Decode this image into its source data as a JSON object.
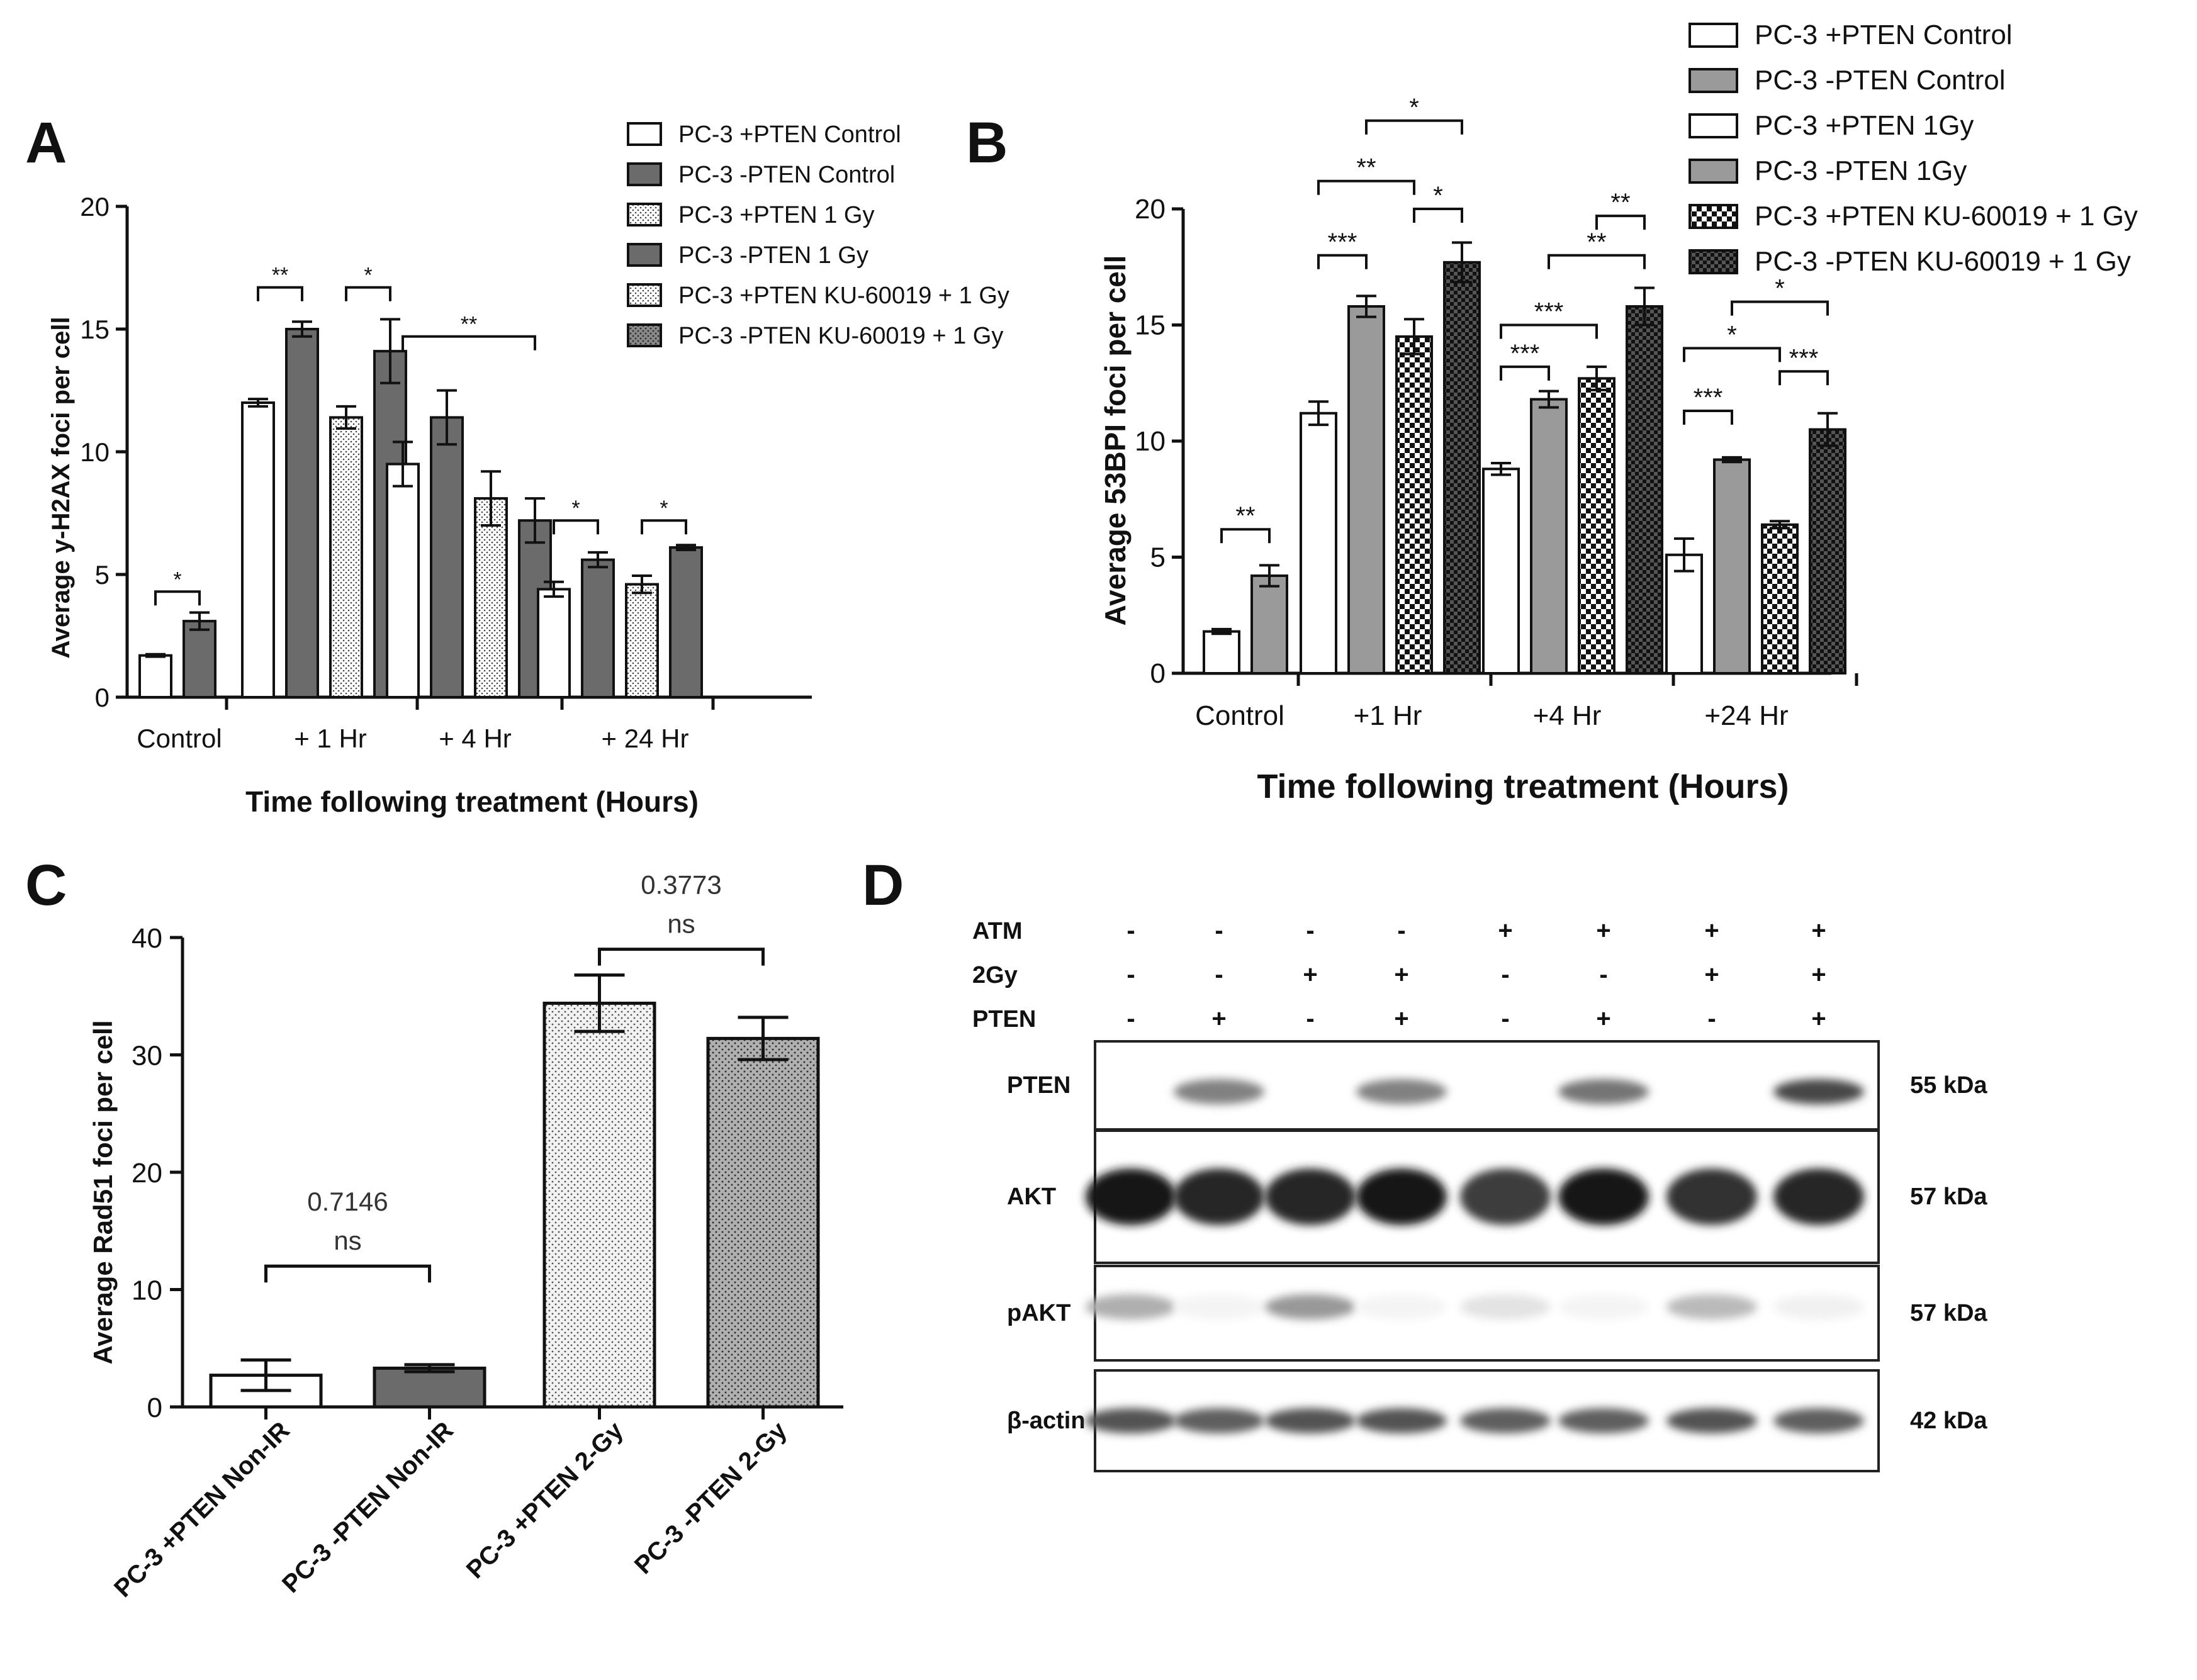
{
  "panel_labels": {
    "a": "A",
    "b": "B",
    "c": "C",
    "d": "D"
  },
  "chart_data": [
    {
      "id": "A",
      "type": "bar",
      "ylabel": "Average y-H2AX foci per cell",
      "xlabel": "Time following treatment (Hours)",
      "ylim": [
        0,
        20
      ],
      "yticks": [
        "0",
        "5",
        "10",
        "15",
        "20"
      ],
      "groups": [
        {
          "label": "Control",
          "values": [
            1.7,
            3.1
          ],
          "errors": [
            0.05,
            0.35
          ]
        },
        {
          "label": "+ 1 Hr",
          "values": [
            12.0,
            15.0,
            11.4,
            14.1
          ],
          "errors": [
            0.15,
            0.3,
            0.45,
            1.3
          ]
        },
        {
          "label": "+ 4 Hr",
          "values": [
            9.5,
            11.4,
            8.1,
            7.2
          ],
          "errors": [
            0.9,
            1.1,
            1.1,
            0.9
          ]
        },
        {
          "label": "+ 24 Hr",
          "values": [
            4.4,
            5.6,
            4.6,
            6.1
          ],
          "errors": [
            0.3,
            0.3,
            0.35,
            0.1
          ]
        }
      ],
      "legend": [
        "PC-3 +PTEN Control",
        "PC-3 -PTEN Control",
        "PC-3 +PTEN 1 Gy",
        "PC-3 -PTEN 1 Gy",
        "PC-3 +PTEN KU-60019 + 1 Gy",
        "PC-3 -PTEN KU-60019 + 1 Gy"
      ],
      "significance": [
        {
          "label": "*"
        },
        {
          "label": "**"
        },
        {
          "label": "*"
        },
        {
          "label": "**"
        },
        {
          "label": "*"
        },
        {
          "label": "*"
        }
      ]
    },
    {
      "id": "B",
      "type": "bar",
      "ylabel": "Average 53BPI foci per cell",
      "xlabel": "Time following treatment (Hours)",
      "ylim": [
        0,
        20
      ],
      "yticks": [
        "0",
        "5",
        "10",
        "15",
        "20"
      ],
      "groups": [
        {
          "label": "Control",
          "values": [
            1.8,
            4.2
          ],
          "errors": [
            0.1,
            0.45
          ]
        },
        {
          "label": "+1 Hr",
          "values": [
            11.2,
            15.8,
            14.5,
            17.7
          ],
          "errors": [
            0.5,
            0.45,
            0.75,
            0.85
          ]
        },
        {
          "label": "+4 Hr",
          "values": [
            8.8,
            11.8,
            12.7,
            15.8
          ],
          "errors": [
            0.25,
            0.35,
            0.5,
            0.8
          ]
        },
        {
          "label": "+24 Hr",
          "values": [
            5.1,
            9.2,
            6.4,
            10.5
          ],
          "errors": [
            0.7,
            0.1,
            0.15,
            0.7
          ]
        }
      ],
      "legend": [
        "PC-3 +PTEN Control",
        "PC-3 -PTEN Control",
        "PC-3 +PTEN 1Gy",
        "PC-3 -PTEN 1Gy",
        "PC-3 +PTEN KU-60019 + 1 Gy",
        "PC-3 -PTEN KU-60019 + 1 Gy"
      ],
      "significance": [
        {
          "label": "**"
        },
        {
          "label": "***"
        },
        {
          "label": "**"
        },
        {
          "label": "*"
        },
        {
          "label": "*"
        },
        {
          "label": "***"
        },
        {
          "label": "***"
        },
        {
          "label": "**"
        },
        {
          "label": "**"
        },
        {
          "label": "***"
        },
        {
          "label": "*"
        },
        {
          "label": "***"
        },
        {
          "label": "*"
        }
      ]
    },
    {
      "id": "C",
      "type": "bar",
      "ylabel": "Average Rad51 foci per cell",
      "ylim": [
        0,
        40
      ],
      "yticks": [
        "0",
        "10",
        "20",
        "30",
        "40"
      ],
      "categories": [
        "PC-3 +PTEN Non-IR",
        "PC-3 -PTEN Non-IR",
        "PC-3 +PTEN 2-Gy",
        "PC-3 -PTEN 2-Gy"
      ],
      "values": [
        2.7,
        3.3,
        34.4,
        31.4
      ],
      "errors": [
        1.3,
        0.3,
        2.4,
        1.8
      ],
      "comparisons": [
        {
          "p": "0.7146",
          "label": "ns"
        },
        {
          "p": "0.3773",
          "label": "ns"
        }
      ]
    }
  ],
  "western_blot": {
    "conditions": [
      {
        "name": "ATM",
        "signs": [
          "-",
          "-",
          "-",
          "-",
          "+",
          "+",
          "+",
          "+"
        ]
      },
      {
        "name": "2Gy",
        "signs": [
          "-",
          "-",
          "+",
          "+",
          "-",
          "-",
          "+",
          "+"
        ]
      },
      {
        "name": "PTEN",
        "signs": [
          "-",
          "+",
          "-",
          "+",
          "-",
          "+",
          "-",
          "+"
        ]
      }
    ],
    "blots": [
      {
        "name": "PTEN",
        "size": "55 kDa",
        "intensity": [
          0,
          0.55,
          0,
          0.55,
          0,
          0.6,
          0,
          0.8
        ]
      },
      {
        "name": "AKT",
        "size": "57 kDa",
        "intensity": [
          1,
          0.95,
          0.95,
          1,
          0.85,
          1,
          0.9,
          0.95
        ]
      },
      {
        "name": "pAKT",
        "size": "57 kDa",
        "intensity": [
          0.35,
          0.05,
          0.45,
          0.05,
          0.12,
          0.05,
          0.3,
          0.06
        ]
      },
      {
        "name": "β-actin",
        "size": "42 kDa",
        "intensity": [
          0.75,
          0.7,
          0.75,
          0.75,
          0.7,
          0.7,
          0.75,
          0.7
        ]
      }
    ]
  },
  "colors": {
    "white_bar": "#ffffff",
    "dark_bar": "#6b6b6b",
    "light_gray_bar": "#a6a6a6",
    "stroke": "#111111"
  }
}
